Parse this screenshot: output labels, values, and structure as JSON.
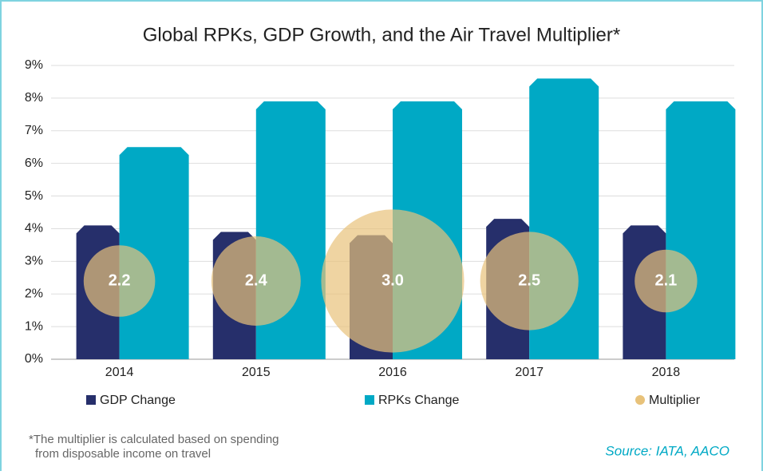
{
  "chart_data": {
    "type": "bar_bubble",
    "title": "Global RPKs, GDP Growth, and the Air Travel Multiplier*",
    "categories": [
      "2014",
      "2015",
      "2016",
      "2017",
      "2018"
    ],
    "series": [
      {
        "name": "GDP Change",
        "color": "#262f6b",
        "values": [
          4.1,
          3.9,
          3.8,
          4.3,
          4.1
        ]
      },
      {
        "name": "RPKs Change",
        "color": "#00a9c5",
        "values": [
          6.5,
          7.9,
          7.9,
          8.6,
          7.9
        ]
      },
      {
        "name": "Multiplier",
        "color": "#e8c27a",
        "values": [
          2.2,
          2.4,
          3.0,
          2.5,
          2.1
        ],
        "value_labels": [
          "2.2",
          "2.4",
          "3.0",
          "2.5",
          "2.1"
        ]
      }
    ],
    "ylim": [
      0,
      9
    ],
    "yticks": [
      {
        "value": 0,
        "label": "0%"
      },
      {
        "value": 1,
        "label": "1%"
      },
      {
        "value": 2,
        "label": "2%"
      },
      {
        "value": 3,
        "label": "3%"
      },
      {
        "value": 4,
        "label": "4%"
      },
      {
        "value": 5,
        "label": "5%"
      },
      {
        "value": 6,
        "label": "6%"
      },
      {
        "value": 7,
        "label": "7%"
      },
      {
        "value": 8,
        "label": "8%"
      },
      {
        "value": 9,
        "label": "9%"
      }
    ],
    "grid": true,
    "legend": "bottom",
    "footnote": [
      "*The multiplier is calculated based on spending",
      "from disposable income on travel"
    ],
    "source": "Source: IATA, AACO"
  }
}
